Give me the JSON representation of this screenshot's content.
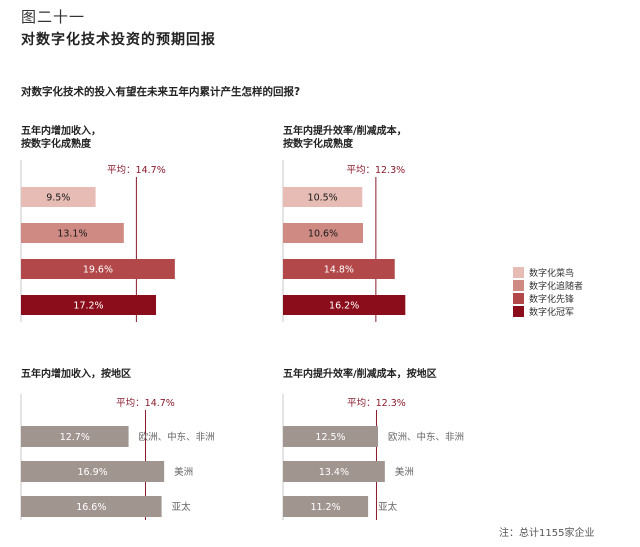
{
  "figure_label": "图二十一",
  "figure_title": "对数字化技术投资的预期回报",
  "question": "对数字化技术的投入有望在未来五年内累计产生怎样的回报?",
  "footnote": "注：总计1155家企业",
  "colors": {
    "novice": "#e6bcb5",
    "follower": "#cf8b83",
    "pioneer": "#b2484a",
    "champion": "#8b0d1c",
    "region": "#a19590",
    "avg_line": "#8b1a2b",
    "axis": "#c9c9c9"
  },
  "legend": [
    {
      "label": "数字化菜鸟",
      "color": "#e6bcb5"
    },
    {
      "label": "数字化追随者",
      "color": "#cf8b83"
    },
    {
      "label": "数字化先锋",
      "color": "#b2484a"
    },
    {
      "label": "数字化冠军",
      "color": "#8b0d1c"
    }
  ],
  "chart_data": [
    {
      "type": "bar",
      "title_lines": [
        "五年内增加收入，",
        "按数字化成熟度"
      ],
      "average_label": "平均：14.7%",
      "average": 14.7,
      "categories": [
        "数字化菜鸟",
        "数字化追随者",
        "数字化先锋",
        "数字化冠军"
      ],
      "values": [
        9.5,
        13.1,
        19.6,
        17.2
      ],
      "value_labels": [
        "9.5%",
        "13.1%",
        "19.6%",
        "17.2%"
      ]
    },
    {
      "type": "bar",
      "title_lines": [
        "五年内提升效率/削减成本，",
        "按数字化成熟度"
      ],
      "average_label": "平均：12.3%",
      "average": 12.3,
      "categories": [
        "数字化菜鸟",
        "数字化追随者",
        "数字化先锋",
        "数字化冠军"
      ],
      "values": [
        10.5,
        10.6,
        14.8,
        16.2
      ],
      "value_labels": [
        "10.5%",
        "10.6%",
        "14.8%",
        "16.2%"
      ]
    },
    {
      "type": "bar",
      "title_lines": [
        "五年内增加收入，按地区"
      ],
      "average_label": "平均：14.7%",
      "average": 14.7,
      "categories": [
        "欧洲、中东、非洲",
        "美洲",
        "亚太"
      ],
      "values": [
        12.7,
        16.9,
        16.6
      ],
      "value_labels": [
        "12.7%",
        "16.9%",
        "16.6%"
      ]
    },
    {
      "type": "bar",
      "title_lines": [
        "五年内提升效率/削减成本，按地区"
      ],
      "average_label": "平均：12.3%",
      "average": 12.3,
      "categories": [
        "欧洲、中东、非洲",
        "美洲",
        "亚太"
      ],
      "values": [
        12.5,
        13.4,
        11.2
      ],
      "value_labels": [
        "12.5%",
        "13.4%",
        "11.2%"
      ]
    }
  ]
}
